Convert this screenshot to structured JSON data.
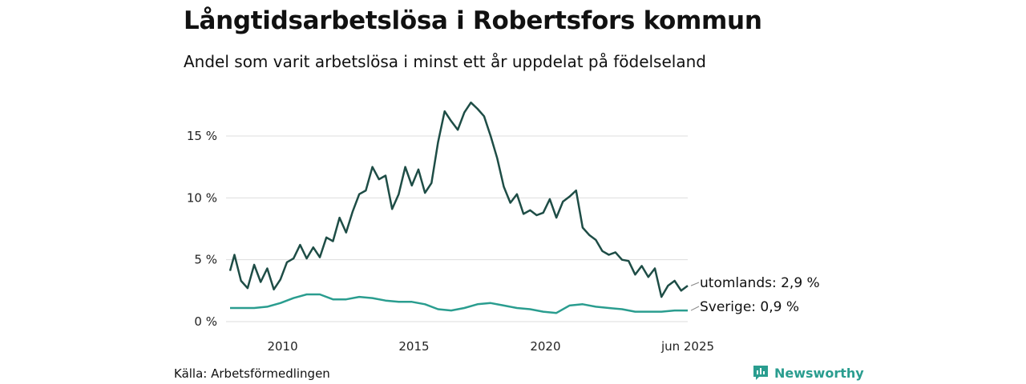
{
  "title": "Långtidsarbetslösa i Robertsfors kommun",
  "subtitle": "Andel som varit arbetslösa i minst ett år uppdelat på födelseland",
  "source": "Källa: Arbetsförmedlingen",
  "brand": {
    "name": "Newsworthy",
    "icon": "newsworthy-logo-icon"
  },
  "colors": {
    "utomlands": "#1e4d46",
    "sverige": "#2a9d8f",
    "grid": "#dddddd",
    "brand": "#2a9d8f"
  },
  "chart_data": {
    "type": "line",
    "x_ticks": [
      "2010",
      "2015",
      "2020",
      "jun 2025"
    ],
    "y_ticks": [
      "0 %",
      "5 %",
      "10 %",
      "15 %"
    ],
    "ylim": [
      0,
      18
    ],
    "xlim": [
      "2008-01",
      "2025-06"
    ],
    "grid": true,
    "series": [
      {
        "name": "utomlands",
        "end_label": "utomlands: 2,9 %",
        "points": [
          [
            "2008-01",
            4.1
          ],
          [
            "2008-03",
            5.4
          ],
          [
            "2008-06",
            3.3
          ],
          [
            "2008-09",
            2.7
          ],
          [
            "2008-12",
            4.6
          ],
          [
            "2009-03",
            3.2
          ],
          [
            "2009-06",
            4.3
          ],
          [
            "2009-09",
            2.6
          ],
          [
            "2009-12",
            3.4
          ],
          [
            "2010-03",
            4.8
          ],
          [
            "2010-06",
            5.1
          ],
          [
            "2010-09",
            6.2
          ],
          [
            "2010-12",
            5.1
          ],
          [
            "2011-03",
            6.0
          ],
          [
            "2011-06",
            5.2
          ],
          [
            "2011-09",
            6.8
          ],
          [
            "2011-12",
            6.5
          ],
          [
            "2012-03",
            8.4
          ],
          [
            "2012-06",
            7.2
          ],
          [
            "2012-09",
            8.9
          ],
          [
            "2012-12",
            10.3
          ],
          [
            "2013-03",
            10.6
          ],
          [
            "2013-06",
            12.5
          ],
          [
            "2013-09",
            11.5
          ],
          [
            "2013-12",
            11.8
          ],
          [
            "2014-03",
            9.1
          ],
          [
            "2014-06",
            10.3
          ],
          [
            "2014-09",
            12.5
          ],
          [
            "2014-12",
            11.0
          ],
          [
            "2015-03",
            12.3
          ],
          [
            "2015-06",
            10.4
          ],
          [
            "2015-09",
            11.2
          ],
          [
            "2015-12",
            14.5
          ],
          [
            "2016-03",
            17.0
          ],
          [
            "2016-06",
            16.2
          ],
          [
            "2016-09",
            15.5
          ],
          [
            "2016-12",
            16.9
          ],
          [
            "2017-03",
            17.7
          ],
          [
            "2017-06",
            17.2
          ],
          [
            "2017-09",
            16.6
          ],
          [
            "2017-12",
            15.0
          ],
          [
            "2018-03",
            13.2
          ],
          [
            "2018-06",
            10.9
          ],
          [
            "2018-09",
            9.6
          ],
          [
            "2018-12",
            10.3
          ],
          [
            "2019-03",
            8.7
          ],
          [
            "2019-06",
            9.0
          ],
          [
            "2019-09",
            8.6
          ],
          [
            "2019-12",
            8.8
          ],
          [
            "2020-03",
            9.9
          ],
          [
            "2020-06",
            8.4
          ],
          [
            "2020-09",
            9.7
          ],
          [
            "2020-12",
            10.1
          ],
          [
            "2021-03",
            10.6
          ],
          [
            "2021-06",
            7.6
          ],
          [
            "2021-09",
            7.0
          ],
          [
            "2021-12",
            6.6
          ],
          [
            "2022-03",
            5.7
          ],
          [
            "2022-06",
            5.4
          ],
          [
            "2022-09",
            5.6
          ],
          [
            "2022-12",
            5.0
          ],
          [
            "2023-03",
            4.9
          ],
          [
            "2023-06",
            3.8
          ],
          [
            "2023-09",
            4.5
          ],
          [
            "2023-12",
            3.6
          ],
          [
            "2024-03",
            4.3
          ],
          [
            "2024-06",
            2.0
          ],
          [
            "2024-09",
            2.9
          ],
          [
            "2024-12",
            3.3
          ],
          [
            "2025-03",
            2.5
          ],
          [
            "2025-06",
            2.9
          ]
        ]
      },
      {
        "name": "Sverige",
        "end_label": "Sverige: 0,9 %",
        "points": [
          [
            "2008-01",
            1.1
          ],
          [
            "2008-06",
            1.1
          ],
          [
            "2008-12",
            1.1
          ],
          [
            "2009-06",
            1.2
          ],
          [
            "2009-12",
            1.5
          ],
          [
            "2010-06",
            1.9
          ],
          [
            "2010-12",
            2.2
          ],
          [
            "2011-06",
            2.2
          ],
          [
            "2011-12",
            1.8
          ],
          [
            "2012-06",
            1.8
          ],
          [
            "2012-12",
            2.0
          ],
          [
            "2013-06",
            1.9
          ],
          [
            "2013-12",
            1.7
          ],
          [
            "2014-06",
            1.6
          ],
          [
            "2014-12",
            1.6
          ],
          [
            "2015-06",
            1.4
          ],
          [
            "2015-12",
            1.0
          ],
          [
            "2016-06",
            0.9
          ],
          [
            "2016-12",
            1.1
          ],
          [
            "2017-06",
            1.4
          ],
          [
            "2017-12",
            1.5
          ],
          [
            "2018-06",
            1.3
          ],
          [
            "2018-12",
            1.1
          ],
          [
            "2019-06",
            1.0
          ],
          [
            "2019-12",
            0.8
          ],
          [
            "2020-06",
            0.7
          ],
          [
            "2020-12",
            1.3
          ],
          [
            "2021-06",
            1.4
          ],
          [
            "2021-12",
            1.2
          ],
          [
            "2022-06",
            1.1
          ],
          [
            "2022-12",
            1.0
          ],
          [
            "2023-06",
            0.8
          ],
          [
            "2023-12",
            0.8
          ],
          [
            "2024-06",
            0.8
          ],
          [
            "2024-12",
            0.9
          ],
          [
            "2025-06",
            0.9
          ]
        ]
      }
    ]
  }
}
